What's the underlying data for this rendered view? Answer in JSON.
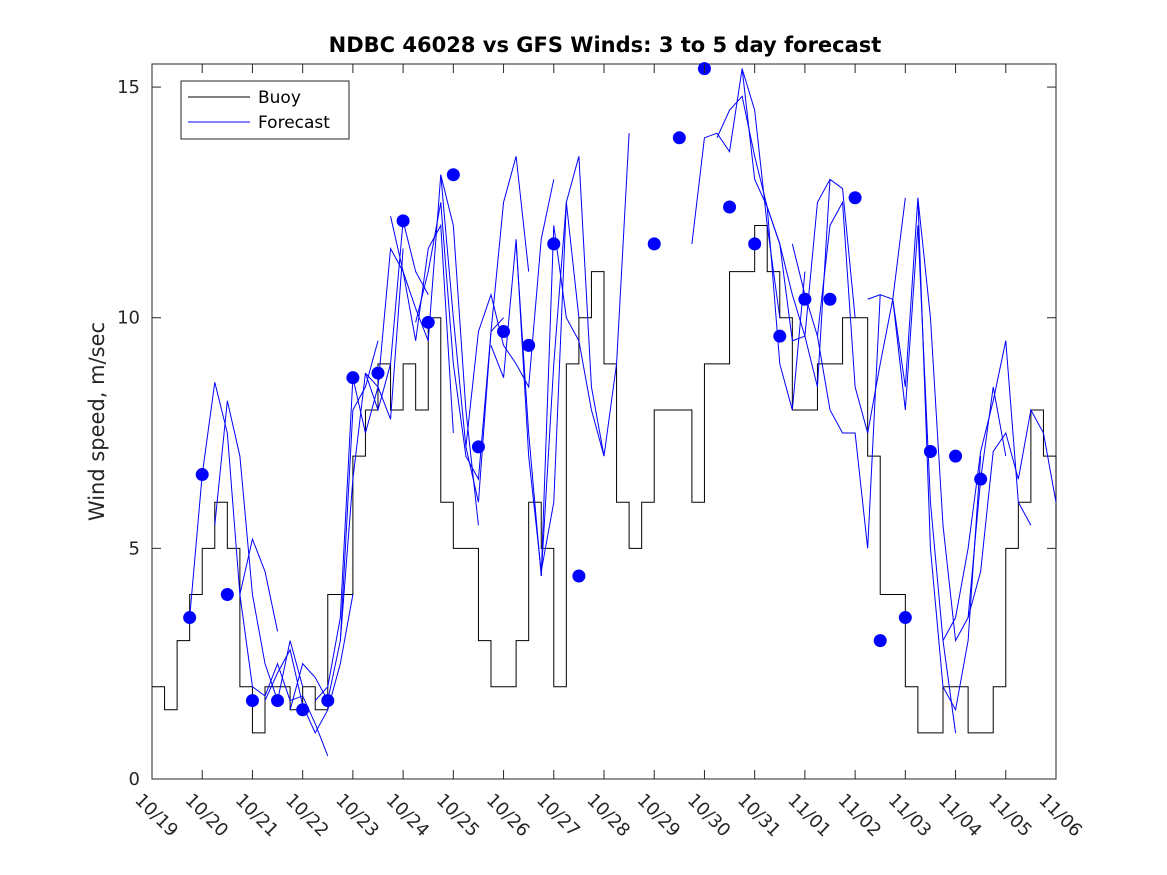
{
  "chart_data": {
    "type": "line",
    "title": "NDBC 46028 vs GFS Winds: 3 to 5 day forecast",
    "xlabel": "",
    "ylabel": "Wind speed, m/sec",
    "xlim": [
      0,
      18
    ],
    "ylim": [
      0,
      15.5
    ],
    "grid": false,
    "legend_position": "top-left",
    "x_ticks": [
      {
        "x": 0,
        "label": "10/19"
      },
      {
        "x": 1,
        "label": "10/20"
      },
      {
        "x": 2,
        "label": "10/21"
      },
      {
        "x": 3,
        "label": "10/22"
      },
      {
        "x": 4,
        "label": "10/23"
      },
      {
        "x": 5,
        "label": "10/24"
      },
      {
        "x": 6,
        "label": "10/25"
      },
      {
        "x": 7,
        "label": "10/26"
      },
      {
        "x": 8,
        "label": "10/27"
      },
      {
        "x": 9,
        "label": "10/28"
      },
      {
        "x": 10,
        "label": "10/29"
      },
      {
        "x": 11,
        "label": "10/30"
      },
      {
        "x": 12,
        "label": "10/31"
      },
      {
        "x": 13,
        "label": "11/01"
      },
      {
        "x": 14,
        "label": "11/02"
      },
      {
        "x": 15,
        "label": "11/03"
      },
      {
        "x": 16,
        "label": "11/04"
      },
      {
        "x": 17,
        "label": "11/05"
      },
      {
        "x": 18,
        "label": "11/06"
      }
    ],
    "y_ticks": [
      {
        "y": 0,
        "label": "0"
      },
      {
        "y": 5,
        "label": "5"
      },
      {
        "y": 10,
        "label": "10"
      },
      {
        "y": 15,
        "label": "15"
      }
    ],
    "legend": [
      {
        "name": "Buoy",
        "color": "#000000"
      },
      {
        "name": "Forecast",
        "color": "#0000ff"
      }
    ],
    "buoy": {
      "name": "Buoy",
      "color": "#000000",
      "x": [
        0,
        0.25,
        0.5,
        0.75,
        1,
        1.25,
        1.5,
        1.75,
        2,
        2.25,
        2.5,
        2.75,
        3,
        3.25,
        3.5,
        3.75,
        4,
        4.25,
        4.5,
        4.75,
        5,
        5.25,
        5.5,
        5.75,
        6,
        6.25,
        6.5,
        6.75,
        7,
        7.25,
        7.5,
        7.75,
        8,
        8.25,
        8.5,
        8.75,
        9,
        9.25,
        9.5,
        9.75,
        10,
        10.25,
        10.5,
        10.75,
        11,
        11.25,
        11.5,
        11.75,
        12,
        12.25,
        12.5,
        12.75,
        13,
        13.25,
        13.5,
        13.75,
        14,
        14.25,
        14.5,
        14.75,
        15,
        15.25,
        15.5,
        15.75,
        16,
        16.25,
        16.5,
        16.75,
        17,
        17.25,
        17.5,
        17.75,
        18
      ],
      "y": [
        2,
        1.5,
        3,
        4,
        5,
        6,
        5,
        2,
        1,
        2,
        2,
        1.5,
        2,
        1.5,
        4,
        4,
        7,
        8,
        9,
        8,
        9,
        8,
        10,
        6,
        5,
        5,
        3,
        2,
        2,
        3,
        6,
        5,
        2,
        9,
        10,
        11,
        9,
        6,
        5,
        6,
        8,
        8,
        8,
        6,
        9,
        9,
        11,
        11,
        12,
        11,
        10,
        8,
        8,
        9,
        9,
        10,
        10,
        7,
        4,
        4,
        2,
        1,
        1,
        2,
        2,
        1,
        1,
        2,
        5,
        6,
        8,
        7,
        5
      ]
    },
    "forecast_series": [
      {
        "name": "Forecast",
        "color": "#0000ff",
        "x": [
          0.75,
          1.0,
          1.25,
          1.5,
          1.75,
          2.0,
          2.25,
          2.5
        ],
        "y": [
          3.5,
          6.6,
          8.6,
          7.5,
          4.0,
          5.2,
          4.5,
          3.2
        ]
      },
      {
        "name": "Forecast",
        "color": "#0000ff",
        "x": [
          1.25,
          1.5,
          1.75,
          2.0,
          2.25,
          2.5,
          2.75,
          3.0
        ],
        "y": [
          5.5,
          8.2,
          7.0,
          4.0,
          2.5,
          1.7,
          3.0,
          2.0
        ]
      },
      {
        "name": "Forecast",
        "color": "#0000ff",
        "x": [
          1.75,
          2.0,
          2.25,
          2.5,
          2.75,
          3.0,
          3.25,
          3.5
        ],
        "y": [
          4.0,
          2.0,
          1.8,
          2.5,
          1.7,
          1.8,
          1.2,
          0.5
        ]
      },
      {
        "name": "Forecast",
        "color": "#0000ff",
        "x": [
          2.25,
          2.5,
          2.75,
          3.0,
          3.25,
          3.5,
          3.75,
          4.0
        ],
        "y": [
          1.7,
          2.3,
          2.8,
          1.6,
          1.0,
          1.5,
          2.5,
          4.0
        ]
      },
      {
        "name": "Forecast",
        "color": "#0000ff",
        "x": [
          2.75,
          3.0,
          3.25,
          3.5,
          3.75,
          4.0,
          4.25,
          4.5
        ],
        "y": [
          1.5,
          2.5,
          2.2,
          1.7,
          3.0,
          8.0,
          8.5,
          9.5
        ]
      },
      {
        "name": "Forecast",
        "color": "#0000ff",
        "x": [
          3.25,
          3.5,
          3.75,
          4.0,
          4.25,
          4.5,
          4.75,
          5.0
        ],
        "y": [
          1.7,
          2.0,
          3.5,
          8.7,
          7.5,
          8.5,
          7.8,
          11.5
        ]
      },
      {
        "name": "Forecast",
        "color": "#0000ff",
        "x": [
          3.75,
          4.0,
          4.25,
          4.5,
          4.75,
          5.0,
          5.25,
          5.5
        ],
        "y": [
          3.0,
          6.5,
          8.8,
          8.0,
          9.0,
          12.1,
          11.0,
          10.5
        ]
      },
      {
        "name": "Forecast",
        "color": "#0000ff",
        "x": [
          4.25,
          4.5,
          4.75,
          5.0,
          5.25,
          5.5,
          5.75,
          6.0
        ],
        "y": [
          8.8,
          8.5,
          11.5,
          11.0,
          9.5,
          11.5,
          12.0,
          7.5
        ]
      },
      {
        "name": "Forecast",
        "color": "#0000ff",
        "x": [
          4.75,
          5.0,
          5.25,
          5.5,
          5.75,
          6.0,
          6.25,
          6.5
        ],
        "y": [
          12.2,
          11.0,
          10.2,
          9.5,
          13.1,
          12.0,
          8.0,
          5.5
        ]
      },
      {
        "name": "Forecast",
        "color": "#0000ff",
        "x": [
          5.25,
          5.5,
          5.75,
          6.0,
          6.25,
          6.5,
          6.75,
          7.0
        ],
        "y": [
          9.9,
          11.0,
          12.5,
          9.0,
          7.0,
          6.5,
          9.7,
          10.0
        ]
      },
      {
        "name": "Forecast",
        "color": "#0000ff",
        "x": [
          5.75,
          6.0,
          6.25,
          6.5,
          6.75,
          7.0,
          7.25,
          7.5
        ],
        "y": [
          13.1,
          10.0,
          7.2,
          6.0,
          9.7,
          12.5,
          13.5,
          11.0
        ]
      },
      {
        "name": "Forecast",
        "color": "#0000ff",
        "x": [
          6.25,
          6.5,
          6.75,
          7.0,
          7.25,
          7.5,
          7.75,
          8.0
        ],
        "y": [
          7.2,
          9.7,
          10.5,
          9.4,
          9.0,
          8.5,
          11.7,
          13.0
        ]
      },
      {
        "name": "Forecast",
        "color": "#0000ff",
        "x": [
          6.75,
          7.0,
          7.25,
          7.5,
          7.75,
          8.0,
          8.25,
          8.5
        ],
        "y": [
          9.4,
          8.7,
          11.7,
          7.0,
          4.5,
          6.0,
          12.5,
          10.0
        ]
      },
      {
        "name": "Forecast",
        "color": "#0000ff",
        "x": [
          7.25,
          7.5,
          7.75,
          8.0,
          8.25,
          8.5,
          8.75,
          9.0
        ],
        "y": [
          11.6,
          7.5,
          4.4,
          9.0,
          12.5,
          13.5,
          8.5,
          7.0
        ]
      },
      {
        "name": "Forecast",
        "color": "#0000ff",
        "x": [
          7.75,
          8.0,
          8.25,
          8.5,
          8.75,
          9.0,
          9.25,
          9.5
        ],
        "y": [
          4.4,
          12.0,
          10.0,
          9.5,
          8.0,
          7.0,
          9.0,
          14.0
        ]
      },
      {
        "name": "Forecast",
        "color": "#0000ff",
        "x": [
          10.75,
          11.0,
          11.25,
          11.5,
          11.75,
          12.0,
          12.25,
          12.5
        ],
        "y": [
          11.6,
          13.9,
          14.0,
          13.6,
          15.4,
          14.5,
          12.0,
          10.0
        ]
      },
      {
        "name": "Forecast",
        "color": "#0000ff",
        "x": [
          11.25,
          11.5,
          11.75,
          12.0,
          12.25,
          12.5,
          12.75,
          13.0
        ],
        "y": [
          13.9,
          14.5,
          14.8,
          13.5,
          12.4,
          9.0,
          8.0,
          11.0
        ]
      },
      {
        "name": "Forecast",
        "color": "#0000ff",
        "x": [
          11.75,
          12.0,
          12.25,
          12.5,
          12.75,
          13.0,
          13.25,
          13.5
        ],
        "y": [
          15.4,
          13.0,
          12.4,
          11.6,
          9.5,
          9.6,
          12.5,
          13.0
        ]
      },
      {
        "name": "Forecast",
        "color": "#0000ff",
        "x": [
          12.25,
          12.5,
          12.75,
          13.0,
          13.25,
          13.5,
          13.75,
          14.0
        ],
        "y": [
          12.4,
          11.6,
          10.5,
          9.6,
          8.5,
          13.0,
          12.8,
          10.0
        ]
      },
      {
        "name": "Forecast",
        "color": "#0000ff",
        "x": [
          12.75,
          13.0,
          13.25,
          13.5,
          13.75,
          14.0,
          14.25,
          14.5
        ],
        "y": [
          11.6,
          10.5,
          9.6,
          8.0,
          7.5,
          7.5,
          5.0,
          10.5
        ]
      },
      {
        "name": "Forecast",
        "color": "#0000ff",
        "x": [
          13.25,
          13.5,
          13.75,
          14.0,
          14.25,
          14.5,
          14.75,
          15.0
        ],
        "y": [
          9.6,
          12.0,
          12.5,
          8.5,
          7.5,
          9.0,
          10.4,
          12.6
        ]
      },
      {
        "name": "Forecast",
        "color": "#0000ff",
        "x": [
          14.25,
          14.5,
          14.75,
          15.0,
          15.25,
          15.5,
          15.75,
          16.0
        ],
        "y": [
          10.4,
          10.5,
          10.4,
          8.0,
          12.0,
          6.0,
          3.0,
          1.0
        ]
      },
      {
        "name": "Forecast",
        "color": "#0000ff",
        "x": [
          14.75,
          15.0,
          15.25,
          15.5,
          15.75,
          16.0,
          16.25,
          16.5
        ],
        "y": [
          10.4,
          8.5,
          12.6,
          5.0,
          2.0,
          1.5,
          3.0,
          7.0
        ]
      },
      {
        "name": "Forecast",
        "color": "#0000ff",
        "x": [
          15.25,
          15.5,
          15.75,
          16.0,
          16.25,
          16.5,
          16.75,
          17.0
        ],
        "y": [
          12.6,
          10.0,
          5.5,
          3.0,
          3.5,
          6.5,
          8.5,
          7.0
        ]
      },
      {
        "name": "Forecast",
        "color": "#0000ff",
        "x": [
          15.75,
          16.0,
          16.25,
          16.5,
          16.75,
          17.0,
          17.25,
          17.5
        ],
        "y": [
          3.0,
          3.5,
          5.0,
          7.1,
          8.2,
          9.5,
          6.0,
          5.5
        ]
      },
      {
        "name": "Forecast",
        "color": "#0000ff",
        "x": [
          16.25,
          16.5,
          16.75,
          17.0,
          17.25,
          17.5,
          17.75,
          18.0
        ],
        "y": [
          3.5,
          4.5,
          7.1,
          7.5,
          6.5,
          8.0,
          7.5,
          6.0
        ]
      }
    ],
    "forecast_points": {
      "name": "Forecast",
      "color": "#0000ff",
      "x": [
        0.75,
        1.0,
        1.5,
        2.0,
        2.5,
        3.0,
        3.5,
        4.0,
        4.5,
        5.0,
        5.5,
        6.0,
        6.5,
        7.0,
        7.5,
        8.0,
        8.5,
        10.0,
        10.5,
        11.0,
        11.5,
        12.0,
        12.5,
        13.0,
        13.5,
        14.0,
        14.5,
        15.0,
        15.5,
        16.0,
        16.5
      ],
      "y": [
        3.5,
        6.6,
        4.0,
        1.7,
        1.7,
        1.5,
        1.7,
        8.7,
        8.8,
        12.1,
        9.9,
        13.1,
        7.2,
        9.7,
        9.4,
        11.6,
        4.4,
        11.6,
        13.9,
        15.4,
        12.4,
        11.6,
        9.6,
        10.4,
        10.4,
        12.6,
        3.0,
        3.5,
        7.1,
        7.0,
        6.5
      ]
    }
  }
}
